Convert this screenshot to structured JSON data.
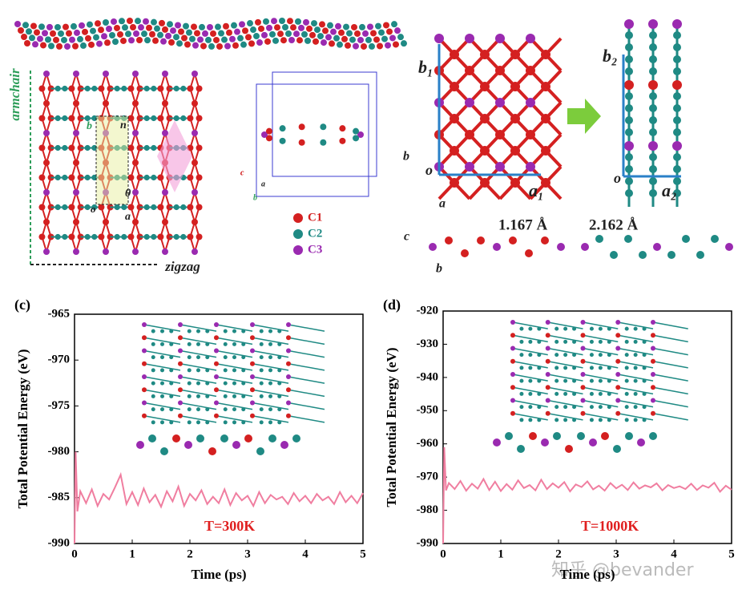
{
  "structures": {
    "armchair": "armchair",
    "zigzag": "zigzag",
    "cell_labels": {
      "b": "b",
      "n": "n",
      "theta": "θ",
      "a": "a",
      "o": "o"
    },
    "box_axes": {
      "c": "c",
      "a": "a",
      "b": "b"
    },
    "legend": [
      "C1",
      "C2",
      "C3"
    ],
    "lattice_1": {
      "b": "b₁",
      "a": "a₁",
      "o": "o"
    },
    "lattice_2": {
      "b": "b₂",
      "a": "a₂",
      "o": "o"
    },
    "axes_ab": {
      "b": "b",
      "a": "a"
    },
    "axes_cb": {
      "c": "c",
      "b": "b"
    },
    "bond_1": "1.167 Å",
    "bond_2": "2.162 Å"
  },
  "watermark": "知乎 @bevander",
  "chart_data": [
    {
      "type": "line",
      "panel": "(c)",
      "xlabel": "Time (ps)",
      "ylabel": "Total Potential Energy (eV)",
      "annotation": "T=300K",
      "xlim": [
        0,
        5
      ],
      "xticks": [
        0,
        1,
        2,
        3,
        4,
        5
      ],
      "ylim": [
        -990,
        -965
      ],
      "yticks": [
        -990,
        -985,
        -980,
        -975,
        -970,
        -965
      ],
      "color": "#f07ea0",
      "x": [
        0,
        0.02,
        0.05,
        0.1,
        0.2,
        0.3,
        0.4,
        0.5,
        0.6,
        0.7,
        0.8,
        0.9,
        1.0,
        1.1,
        1.2,
        1.3,
        1.4,
        1.5,
        1.6,
        1.7,
        1.8,
        1.9,
        2.0,
        2.1,
        2.2,
        2.3,
        2.4,
        2.5,
        2.6,
        2.7,
        2.8,
        2.9,
        3.0,
        3.1,
        3.2,
        3.3,
        3.4,
        3.5,
        3.6,
        3.7,
        3.8,
        3.9,
        4.0,
        4.1,
        4.2,
        4.3,
        4.4,
        4.5,
        4.6,
        4.7,
        4.8,
        4.9,
        5.0
      ],
      "values": [
        -990,
        -980,
        -986.5,
        -984.3,
        -985.6,
        -984.1,
        -985.9,
        -984.6,
        -985.2,
        -983.9,
        -982.5,
        -985.7,
        -984.4,
        -985.8,
        -984.0,
        -985.5,
        -984.7,
        -986.0,
        -984.3,
        -985.4,
        -983.8,
        -985.9,
        -984.6,
        -985.3,
        -984.2,
        -985.7,
        -984.9,
        -985.6,
        -984.1,
        -985.8,
        -984.5,
        -985.3,
        -984.8,
        -985.9,
        -984.4,
        -985.6,
        -984.7,
        -985.2,
        -984.9,
        -985.7,
        -984.5,
        -985.4,
        -984.8,
        -985.6,
        -984.6,
        -985.3,
        -984.9,
        -985.7,
        -984.4,
        -985.5,
        -984.8,
        -985.6,
        -984.5
      ]
    },
    {
      "type": "line",
      "panel": "(d)",
      "xlabel": "Time (ps)",
      "ylabel": "Total Potential Energy (eV)",
      "annotation": "T=1000K",
      "xlim": [
        0,
        5
      ],
      "xticks": [
        0,
        1,
        2,
        3,
        4,
        5
      ],
      "ylim": [
        -990,
        -920
      ],
      "yticks": [
        -990,
        -980,
        -970,
        -960,
        -950,
        -940,
        -930,
        -920
      ],
      "color": "#f07ea0",
      "x": [
        0,
        0.02,
        0.05,
        0.1,
        0.2,
        0.3,
        0.4,
        0.5,
        0.6,
        0.7,
        0.8,
        0.9,
        1.0,
        1.1,
        1.2,
        1.3,
        1.4,
        1.5,
        1.6,
        1.7,
        1.8,
        1.9,
        2.0,
        2.1,
        2.2,
        2.3,
        2.4,
        2.5,
        2.6,
        2.7,
        2.8,
        2.9,
        3.0,
        3.1,
        3.2,
        3.3,
        3.4,
        3.5,
        3.6,
        3.7,
        3.8,
        3.9,
        4.0,
        4.1,
        4.2,
        4.3,
        4.4,
        4.5,
        4.6,
        4.7,
        4.8,
        4.9,
        5.0
      ],
      "values": [
        -990,
        -961,
        -974,
        -971.8,
        -973.6,
        -971.2,
        -974.1,
        -972.0,
        -973.5,
        -970.6,
        -973.9,
        -971.4,
        -974.2,
        -972.1,
        -973.8,
        -971.0,
        -973.3,
        -972.4,
        -974.0,
        -970.8,
        -973.6,
        -971.9,
        -973.2,
        -971.5,
        -974.3,
        -972.2,
        -973.0,
        -971.3,
        -973.7,
        -972.6,
        -974.1,
        -971.8,
        -973.4,
        -972.3,
        -973.9,
        -971.6,
        -973.5,
        -972.5,
        -973.1,
        -971.9,
        -974.0,
        -972.4,
        -973.3,
        -972.8,
        -973.6,
        -972.0,
        -973.9,
        -972.5,
        -973.2,
        -971.7,
        -974.4,
        -972.6,
        -973.8
      ]
    }
  ]
}
